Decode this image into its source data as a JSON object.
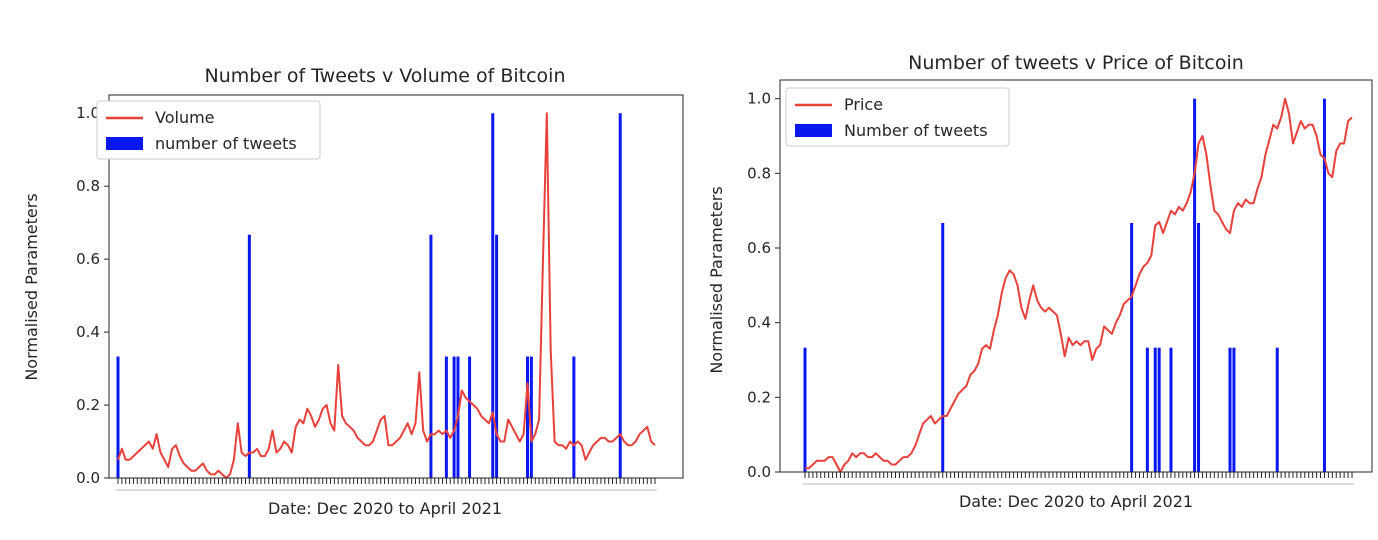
{
  "chart_data": [
    {
      "type": "bar+line",
      "title": "Number of Tweets v Volume of Bitcoin",
      "xlabel": "Date: Dec 2020 to April 2021",
      "ylabel": "Normalised Parameters",
      "ylim": [
        0,
        1.05
      ],
      "yticks": [
        "0.0",
        "0.2",
        "0.4",
        "0.6",
        "0.8",
        "1.0"
      ],
      "legend_position": "upper-left",
      "grid": false,
      "n_x": 140,
      "line": {
        "name": "Volume",
        "color": "#e8413a",
        "values": [
          0.05,
          0.08,
          0.05,
          0.05,
          0.06,
          0.07,
          0.08,
          0.09,
          0.1,
          0.08,
          0.12,
          0.07,
          0.05,
          0.03,
          0.08,
          0.09,
          0.06,
          0.04,
          0.03,
          0.02,
          0.02,
          0.03,
          0.04,
          0.02,
          0.01,
          0.01,
          0.02,
          0.01,
          0.0,
          0.01,
          0.05,
          0.15,
          0.07,
          0.06,
          0.07,
          0.07,
          0.08,
          0.06,
          0.06,
          0.08,
          0.13,
          0.07,
          0.08,
          0.1,
          0.09,
          0.07,
          0.14,
          0.16,
          0.15,
          0.19,
          0.17,
          0.14,
          0.16,
          0.19,
          0.2,
          0.15,
          0.13,
          0.31,
          0.17,
          0.15,
          0.14,
          0.13,
          0.11,
          0.1,
          0.09,
          0.09,
          0.1,
          0.13,
          0.16,
          0.17,
          0.09,
          0.09,
          0.1,
          0.11,
          0.13,
          0.15,
          0.12,
          0.15,
          0.29,
          0.13,
          0.1,
          0.12,
          0.12,
          0.13,
          0.12,
          0.13,
          0.11,
          0.13,
          0.17,
          0.24,
          0.22,
          0.21,
          0.2,
          0.19,
          0.17,
          0.16,
          0.15,
          0.18,
          0.12,
          0.1,
          0.1,
          0.16,
          0.14,
          0.12,
          0.1,
          0.12,
          0.26,
          0.1,
          0.12,
          0.16,
          0.6,
          1.0,
          0.35,
          0.1,
          0.09,
          0.09,
          0.08,
          0.1,
          0.09,
          0.1,
          0.09,
          0.05,
          0.07,
          0.09,
          0.1,
          0.11,
          0.11,
          0.1,
          0.1,
          0.11,
          0.12,
          0.1,
          0.09,
          0.09,
          0.1,
          0.12,
          0.13,
          0.14,
          0.1,
          0.09
        ],
        "tail_values": [
          0.09,
          0.12,
          0.08,
          0.09,
          0.1,
          0.13,
          0.12
        ]
      },
      "bars": {
        "name": "number of tweets",
        "color": "#0a18f0",
        "points": [
          [
            0,
            0.333
          ],
          [
            34,
            0.667
          ],
          [
            81,
            0.667
          ],
          [
            85,
            0.333
          ],
          [
            87,
            0.333
          ],
          [
            88,
            0.333
          ],
          [
            91,
            0.333
          ],
          [
            97,
            1.0
          ],
          [
            98,
            0.667
          ],
          [
            106,
            0.333
          ],
          [
            107,
            0.333
          ],
          [
            118,
            0.333
          ],
          [
            130,
            1.0
          ]
        ]
      }
    },
    {
      "type": "bar+line",
      "title": "Number of tweets v Price of Bitcoin",
      "xlabel": "Date: Dec 2020 to April 2021",
      "ylabel": "Normalised Parameters",
      "ylim": [
        0,
        1.05
      ],
      "yticks": [
        "0.0",
        "0.2",
        "0.4",
        "0.6",
        "0.8",
        "1.0"
      ],
      "legend_position": "upper-left",
      "grid": false,
      "n_x": 140,
      "line": {
        "name": "Price",
        "color": "#e8413a",
        "values": [
          0.01,
          0.01,
          0.02,
          0.03,
          0.03,
          0.03,
          0.04,
          0.04,
          0.02,
          0.0,
          0.02,
          0.03,
          0.05,
          0.04,
          0.05,
          0.05,
          0.04,
          0.04,
          0.05,
          0.04,
          0.03,
          0.03,
          0.02,
          0.02,
          0.03,
          0.04,
          0.04,
          0.05,
          0.07,
          0.1,
          0.13,
          0.14,
          0.15,
          0.13,
          0.14,
          0.15,
          0.15,
          0.17,
          0.19,
          0.21,
          0.22,
          0.23,
          0.26,
          0.27,
          0.29,
          0.33,
          0.34,
          0.33,
          0.38,
          0.42,
          0.48,
          0.52,
          0.54,
          0.53,
          0.5,
          0.44,
          0.41,
          0.46,
          0.5,
          0.46,
          0.44,
          0.43,
          0.44,
          0.43,
          0.42,
          0.37,
          0.31,
          0.36,
          0.34,
          0.35,
          0.34,
          0.35,
          0.35,
          0.3,
          0.33,
          0.34,
          0.39,
          0.38,
          0.37,
          0.4,
          0.42,
          0.45,
          0.46,
          0.47,
          0.5,
          0.53,
          0.55,
          0.56,
          0.58,
          0.66,
          0.67,
          0.64,
          0.67,
          0.7,
          0.69,
          0.71,
          0.7,
          0.72,
          0.75,
          0.8,
          0.88,
          0.9,
          0.85,
          0.77,
          0.7,
          0.69,
          0.67,
          0.65,
          0.64,
          0.7,
          0.72,
          0.71,
          0.73,
          0.72,
          0.72,
          0.76,
          0.79,
          0.85,
          0.89,
          0.93,
          0.92,
          0.95,
          1.0,
          0.96,
          0.88,
          0.91,
          0.94,
          0.92,
          0.93,
          0.93,
          0.9,
          0.85,
          0.84,
          0.8,
          0.79,
          0.86,
          0.88,
          0.88,
          0.94,
          0.95
        ]
      },
      "bars": {
        "name": "Number of tweets",
        "color": "#0a18f0",
        "points": [
          [
            0,
            0.333
          ],
          [
            35,
            0.667
          ],
          [
            83,
            0.667
          ],
          [
            87,
            0.333
          ],
          [
            89,
            0.333
          ],
          [
            90,
            0.333
          ],
          [
            93,
            0.333
          ],
          [
            99,
            1.0
          ],
          [
            100,
            0.667
          ],
          [
            108,
            0.333
          ],
          [
            109,
            0.333
          ],
          [
            120,
            0.333
          ],
          [
            132,
            1.0
          ]
        ]
      }
    }
  ]
}
